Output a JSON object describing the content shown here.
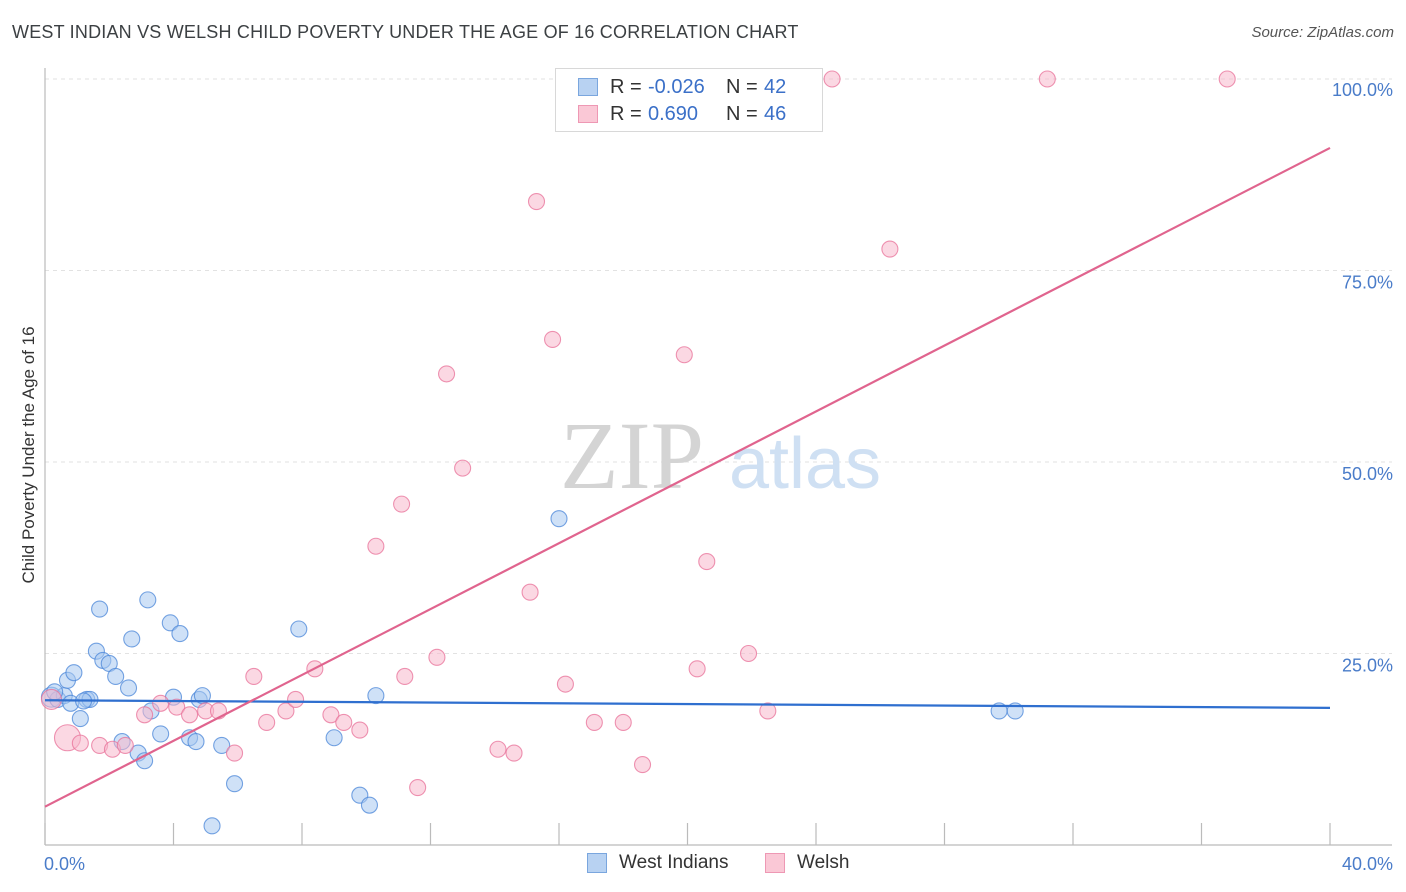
{
  "header": {
    "title": "WEST INDIAN VS WELSH CHILD POVERTY UNDER THE AGE OF 16 CORRELATION CHART",
    "source": "Source: ZipAtlas.com"
  },
  "watermark": {
    "zip": "ZIP",
    "atlas": "atlas"
  },
  "legend": {
    "rows": [
      {
        "r_label": "R =",
        "r_value": "-0.026",
        "n_label": "N =",
        "n_value": "42",
        "color": "#a8c8f0"
      },
      {
        "r_label": "R =",
        "r_value": "0.690",
        "n_label": "N =",
        "n_value": "46",
        "color": "#f8b8cc"
      }
    ]
  },
  "bottom_legend": {
    "west_indians": "West Indians",
    "welsh": "Welsh"
  },
  "chart_data": {
    "type": "scatter",
    "title": "WEST INDIAN VS WELSH CHILD POVERTY UNDER THE AGE OF 16 CORRELATION CHART",
    "xlabel": "",
    "ylabel": "Child Poverty Under the Age of 16",
    "xlim": [
      0,
      40
    ],
    "ylim": [
      0,
      105
    ],
    "x_tick_labels": {
      "min": "0.0%",
      "max": "40.0%"
    },
    "y_ticks": [
      {
        "value": 25,
        "label": "25.0%"
      },
      {
        "value": 50,
        "label": "50.0%"
      },
      {
        "value": 75,
        "label": "75.0%"
      },
      {
        "value": 100,
        "label": "100.0%"
      }
    ],
    "grid": true,
    "series": [
      {
        "name": "West Indians",
        "color": "#4a86d8",
        "fill": "#a8c8f0",
        "trend": {
          "x0": 0,
          "y0": 18.9,
          "x1": 40,
          "y1": 17.9
        },
        "points": [
          [
            0.2,
            19.3
          ],
          [
            0.4,
            19.0
          ],
          [
            0.6,
            19.5
          ],
          [
            0.7,
            21.5
          ],
          [
            0.8,
            18.5
          ],
          [
            0.9,
            22.5
          ],
          [
            1.1,
            16.5
          ],
          [
            1.3,
            19.0
          ],
          [
            1.4,
            19.0
          ],
          [
            1.6,
            25.3
          ],
          [
            1.7,
            30.8
          ],
          [
            1.8,
            24.1
          ],
          [
            2.0,
            23.7
          ],
          [
            2.2,
            22.0
          ],
          [
            2.4,
            13.5
          ],
          [
            2.6,
            20.5
          ],
          [
            2.7,
            26.9
          ],
          [
            2.9,
            12.0
          ],
          [
            3.1,
            11.0
          ],
          [
            3.2,
            32.0
          ],
          [
            3.3,
            17.5
          ],
          [
            3.6,
            14.5
          ],
          [
            3.9,
            29.0
          ],
          [
            4.0,
            19.3
          ],
          [
            4.2,
            27.6
          ],
          [
            4.5,
            14.0
          ],
          [
            4.7,
            13.5
          ],
          [
            4.8,
            19.0
          ],
          [
            4.9,
            19.5
          ],
          [
            5.2,
            2.5
          ],
          [
            5.5,
            13.0
          ],
          [
            5.9,
            8.0
          ],
          [
            7.9,
            28.2
          ],
          [
            9.0,
            14.0
          ],
          [
            9.8,
            6.5
          ],
          [
            10.1,
            5.2
          ],
          [
            10.3,
            19.5
          ],
          [
            16.0,
            42.6
          ],
          [
            29.7,
            17.5
          ],
          [
            30.2,
            17.5
          ],
          [
            0.3,
            20.0
          ],
          [
            1.2,
            18.8
          ]
        ]
      },
      {
        "name": "Welsh",
        "color": "#e87098",
        "fill": "#f8b8cc",
        "trend": {
          "x0": 0,
          "y0": 5.0,
          "x1": 40,
          "y1": 91.0
        },
        "points": [
          [
            0.2,
            19.0
          ],
          [
            0.7,
            14.0
          ],
          [
            1.1,
            13.3
          ],
          [
            1.7,
            13.0
          ],
          [
            2.1,
            12.5
          ],
          [
            2.5,
            13.0
          ],
          [
            3.1,
            17.0
          ],
          [
            3.6,
            18.5
          ],
          [
            4.1,
            18.0
          ],
          [
            4.5,
            17.0
          ],
          [
            5.0,
            17.5
          ],
          [
            5.4,
            17.5
          ],
          [
            5.9,
            12.0
          ],
          [
            6.5,
            22.0
          ],
          [
            6.9,
            16.0
          ],
          [
            7.5,
            17.5
          ],
          [
            7.8,
            19.0
          ],
          [
            8.4,
            23.0
          ],
          [
            8.9,
            17.0
          ],
          [
            9.3,
            16.0
          ],
          [
            9.8,
            15.0
          ],
          [
            10.3,
            39.0
          ],
          [
            11.1,
            44.5
          ],
          [
            11.2,
            22.0
          ],
          [
            11.6,
            7.5
          ],
          [
            12.2,
            24.5
          ],
          [
            12.5,
            61.5
          ],
          [
            13.0,
            49.2
          ],
          [
            14.1,
            12.5
          ],
          [
            14.6,
            12.0
          ],
          [
            15.1,
            33.0
          ],
          [
            15.3,
            84.0
          ],
          [
            15.8,
            66.0
          ],
          [
            16.2,
            21.0
          ],
          [
            17.1,
            16.0
          ],
          [
            18.0,
            16.0
          ],
          [
            18.6,
            10.5
          ],
          [
            19.9,
            64.0
          ],
          [
            20.3,
            23.0
          ],
          [
            20.6,
            37.0
          ],
          [
            21.9,
            25.0
          ],
          [
            22.5,
            17.5
          ],
          [
            24.5,
            100.0
          ],
          [
            26.3,
            77.8
          ],
          [
            31.2,
            100.0
          ],
          [
            36.8,
            100.0
          ]
        ]
      }
    ]
  }
}
